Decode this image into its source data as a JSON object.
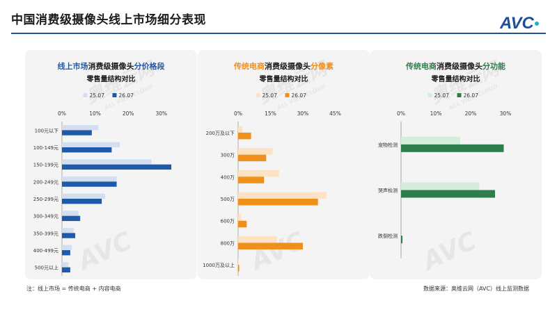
{
  "page": {
    "title": "中国消费级摄像头线上市场细分表现",
    "brand": "AVC",
    "note": "注：线上市场 = 传统电商 + 内容电商",
    "source": "数据来源：奥维云网（AVC）线上监测数据",
    "watermark_cn": "奥维云网",
    "watermark_en": "ALL VIEW CLOUD",
    "colors": {
      "primary": "#1f4e9c",
      "orange": "#ef8f1c",
      "green": "#2f7d4a"
    }
  },
  "chart_data": [
    {
      "type": "bar",
      "orientation": "horizontal",
      "title_parts": [
        {
          "text": "线上市场",
          "color": "#2458a8"
        },
        {
          "text": "消费级摄像头",
          "color": "#1a1a1a"
        },
        {
          "text": "分价格段",
          "color": "#2458a8"
        }
      ],
      "subtitle": "零售量结构对比",
      "xlim": [
        0,
        35
      ],
      "xticks": [
        0,
        10,
        20,
        30
      ],
      "xtick_labels": [
        "0%",
        "10%",
        "20%",
        "30%"
      ],
      "categories": [
        "100元以下",
        "100-149元",
        "150-199元",
        "200-249元",
        "250-299元",
        "300-349元",
        "350-399元",
        "400-499元",
        "500元以上"
      ],
      "series": [
        {
          "name": "25.07",
          "color": "#d3dff0",
          "values": [
            11,
            17.5,
            27,
            16.5,
            13,
            5,
            3.5,
            3,
            2
          ]
        },
        {
          "name": "26.07",
          "color": "#1f5aa8",
          "values": [
            9,
            15,
            33,
            16.5,
            12,
            5.5,
            4,
            2.5,
            2.5
          ]
        }
      ]
    },
    {
      "type": "bar",
      "orientation": "horizontal",
      "title_parts": [
        {
          "text": "传统电商",
          "color": "#ef8f1c"
        },
        {
          "text": "消费级摄像头",
          "color": "#1a1a1a"
        },
        {
          "text": "分像素",
          "color": "#ef8f1c"
        }
      ],
      "subtitle": "零售量结构对比",
      "xlim": [
        0,
        47
      ],
      "xticks": [
        0,
        15,
        30,
        45
      ],
      "xtick_labels": [
        "0%",
        "15%",
        "30%",
        "45%"
      ],
      "categories": [
        "200万及以下",
        "300万",
        "400万",
        "500万",
        "600万",
        "800万",
        "1000万及以上"
      ],
      "series": [
        {
          "name": "25.07",
          "color": "#fde3c4",
          "values": [
            2,
            16,
            19,
            41,
            1.5,
            18,
            0.2
          ]
        },
        {
          "name": "26.07",
          "color": "#ef8f1c",
          "values": [
            6,
            13,
            12,
            37,
            4,
            30,
            0.5
          ]
        }
      ]
    },
    {
      "type": "bar",
      "orientation": "horizontal",
      "title_parts": [
        {
          "text": "传统电商",
          "color": "#2f7d4a"
        },
        {
          "text": "消费级摄像头",
          "color": "#1a1a1a"
        },
        {
          "text": "分功能",
          "color": "#2f7d4a"
        }
      ],
      "subtitle": "零售量结构对比",
      "xlim": [
        0,
        33
      ],
      "xticks": [
        0,
        10,
        20,
        30
      ],
      "xtick_labels": [
        "0%",
        "10%",
        "20%",
        "30%"
      ],
      "categories": [
        "宠物检测",
        "哭声检测",
        "跌倒检测"
      ],
      "series": [
        {
          "name": "25.07",
          "color": "#d3efdc",
          "values": [
            17,
            22.5,
            0
          ]
        },
        {
          "name": "26.07",
          "color": "#2f7d4a",
          "values": [
            29.5,
            27,
            0.4
          ]
        }
      ]
    }
  ]
}
